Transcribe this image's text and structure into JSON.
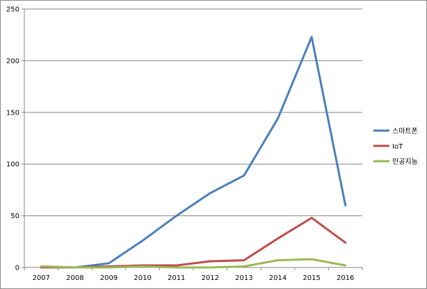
{
  "chart_data": {
    "type": "line",
    "title": "",
    "xlabel": "",
    "ylabel": "",
    "x": [
      "2007",
      "2008",
      "2009",
      "2010",
      "2011",
      "2012",
      "2013",
      "2014",
      "2015",
      "2016"
    ],
    "ylim": [
      0,
      250
    ],
    "yticks": [
      0,
      50,
      100,
      150,
      200,
      250
    ],
    "grid": "horizontal",
    "legend_position": "right",
    "series": [
      {
        "name": "스마트폰",
        "color": "#4a7ebb",
        "values": [
          1,
          0,
          4,
          26,
          50,
          72,
          89,
          144,
          223,
          60
        ]
      },
      {
        "name": "IoT",
        "color": "#be4b48",
        "values": [
          0,
          0,
          1,
          2,
          2,
          6,
          7,
          28,
          48,
          24
        ]
      },
      {
        "name": "인공지능",
        "color": "#98b954",
        "values": [
          1,
          0,
          0,
          1,
          0,
          0,
          1,
          7,
          8,
          2
        ]
      }
    ]
  }
}
